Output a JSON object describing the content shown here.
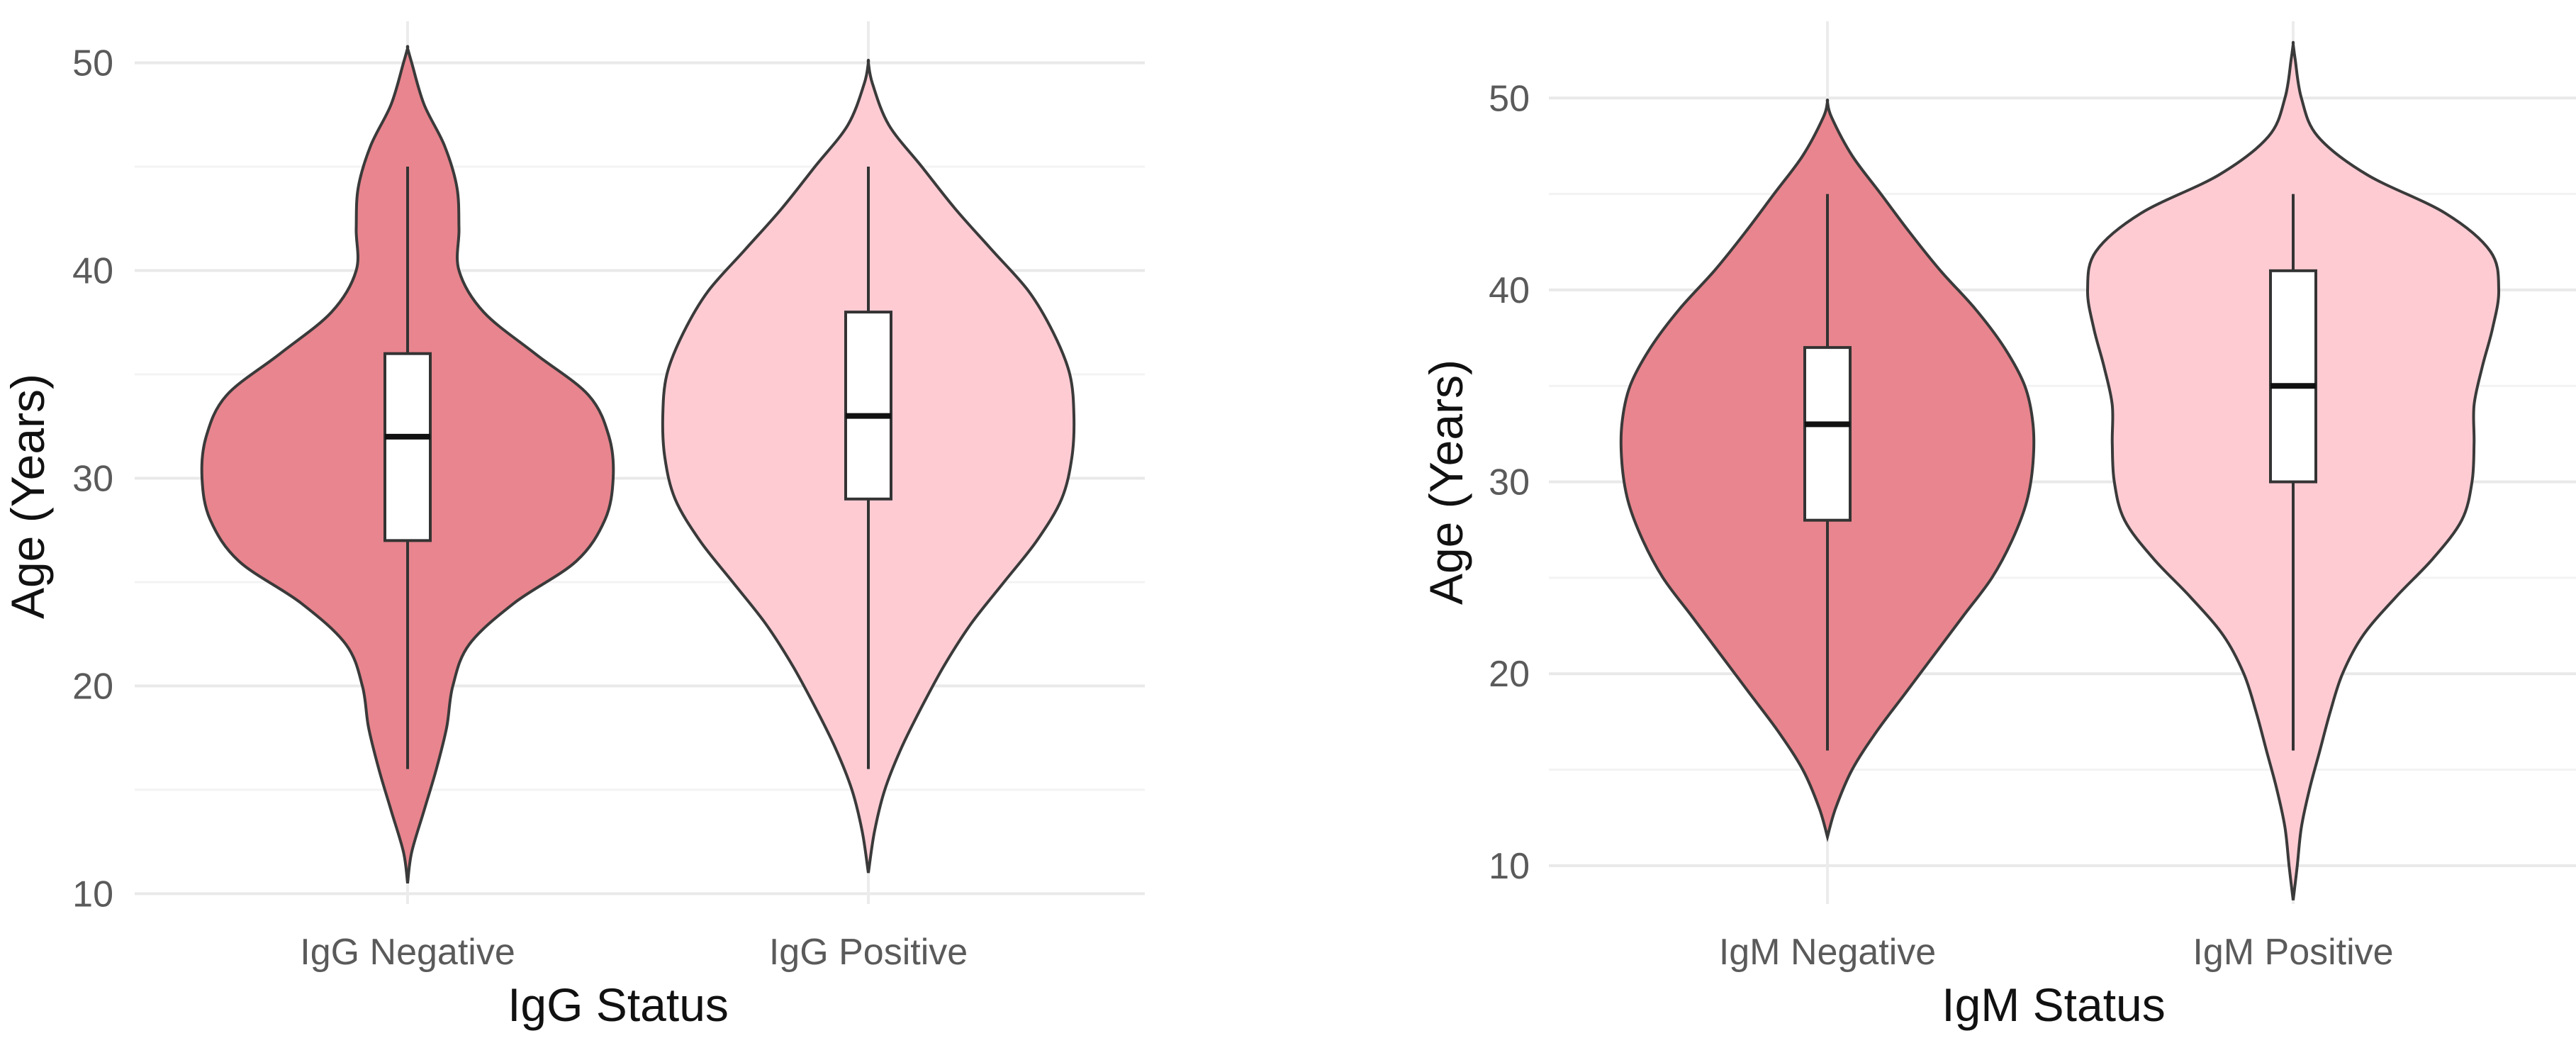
{
  "chart_data": [
    {
      "type": "violin",
      "title": "",
      "xlabel": "IgG Status",
      "ylabel": "Age (Years)",
      "ylim": [
        9.5,
        52
      ],
      "yticks": [
        10,
        20,
        30,
        40,
        50
      ],
      "grid": true,
      "categories": [
        "IgG Negative",
        "IgG Positive"
      ],
      "series": [
        {
          "category": "IgG Negative",
          "color": "#e8858e",
          "box": {
            "whisker_low": 16,
            "q1": 27,
            "median": 32,
            "q3": 36,
            "whisker_high": 45
          },
          "density": [
            [
              10.5,
              0.0
            ],
            [
              12,
              0.02
            ],
            [
              14,
              0.08
            ],
            [
              16,
              0.14
            ],
            [
              18,
              0.19
            ],
            [
              20,
              0.22
            ],
            [
              22,
              0.3
            ],
            [
              24,
              0.52
            ],
            [
              26,
              0.82
            ],
            [
              28,
              0.96
            ],
            [
              30,
              1.0
            ],
            [
              32,
              0.98
            ],
            [
              34,
              0.88
            ],
            [
              36,
              0.62
            ],
            [
              38,
              0.37
            ],
            [
              40,
              0.25
            ],
            [
              42,
              0.25
            ],
            [
              44,
              0.24
            ],
            [
              46,
              0.18
            ],
            [
              48,
              0.08
            ],
            [
              50,
              0.02
            ],
            [
              50.7,
              0.0
            ]
          ]
        },
        {
          "category": "IgG Positive",
          "color": "#fecbd3",
          "box": {
            "whisker_low": 16,
            "q1": 29,
            "median": 33,
            "q3": 38,
            "whisker_high": 45
          },
          "density": [
            [
              11,
              0.0
            ],
            [
              13,
              0.03
            ],
            [
              15,
              0.08
            ],
            [
              17,
              0.16
            ],
            [
              19,
              0.26
            ],
            [
              21,
              0.37
            ],
            [
              23,
              0.5
            ],
            [
              25,
              0.66
            ],
            [
              27,
              0.82
            ],
            [
              29,
              0.94
            ],
            [
              31,
              0.99
            ],
            [
              33,
              1.0
            ],
            [
              35,
              0.98
            ],
            [
              37,
              0.9
            ],
            [
              39,
              0.78
            ],
            [
              41,
              0.6
            ],
            [
              43,
              0.42
            ],
            [
              45,
              0.26
            ],
            [
              47,
              0.1
            ],
            [
              49,
              0.02
            ],
            [
              50,
              0.0
            ]
          ]
        }
      ]
    },
    {
      "type": "violin",
      "title": "",
      "xlabel": "IgM Status",
      "ylabel": "Age (Years)",
      "ylim": [
        8,
        54
      ],
      "yticks": [
        10,
        20,
        30,
        40,
        50
      ],
      "grid": true,
      "categories": [
        "IgM Negative",
        "IgM Positive"
      ],
      "series": [
        {
          "category": "IgM Negative",
          "color": "#e8858e",
          "box": {
            "whisker_low": 16,
            "q1": 28,
            "median": 33,
            "q3": 37,
            "whisker_high": 45
          },
          "density": [
            [
              11.5,
              0.0
            ],
            [
              13,
              0.04
            ],
            [
              15,
              0.12
            ],
            [
              17,
              0.24
            ],
            [
              19,
              0.38
            ],
            [
              21,
              0.52
            ],
            [
              23,
              0.66
            ],
            [
              25,
              0.8
            ],
            [
              27,
              0.9
            ],
            [
              29,
              0.97
            ],
            [
              31,
              1.0
            ],
            [
              33,
              1.0
            ],
            [
              35,
              0.96
            ],
            [
              37,
              0.86
            ],
            [
              39,
              0.72
            ],
            [
              41,
              0.55
            ],
            [
              43,
              0.4
            ],
            [
              45,
              0.26
            ],
            [
              47,
              0.12
            ],
            [
              49,
              0.02
            ],
            [
              49.8,
              0.0
            ]
          ]
        },
        {
          "category": "IgM Positive",
          "color": "#fecbd3",
          "box": {
            "whisker_low": 16,
            "q1": 30,
            "median": 35,
            "q3": 41,
            "whisker_high": 45
          },
          "density": [
            [
              8.2,
              0.0
            ],
            [
              10,
              0.02
            ],
            [
              12,
              0.04
            ],
            [
              14,
              0.08
            ],
            [
              16,
              0.13
            ],
            [
              18,
              0.18
            ],
            [
              20,
              0.24
            ],
            [
              22,
              0.34
            ],
            [
              24,
              0.5
            ],
            [
              26,
              0.68
            ],
            [
              28,
              0.82
            ],
            [
              30,
              0.87
            ],
            [
              32,
              0.88
            ],
            [
              34,
              0.88
            ],
            [
              36,
              0.92
            ],
            [
              38,
              0.97
            ],
            [
              40,
              1.0
            ],
            [
              42,
              0.96
            ],
            [
              44,
              0.74
            ],
            [
              46,
              0.36
            ],
            [
              48,
              0.12
            ],
            [
              50,
              0.04
            ],
            [
              52,
              0.01
            ],
            [
              52.8,
              0.0
            ]
          ]
        }
      ]
    }
  ]
}
